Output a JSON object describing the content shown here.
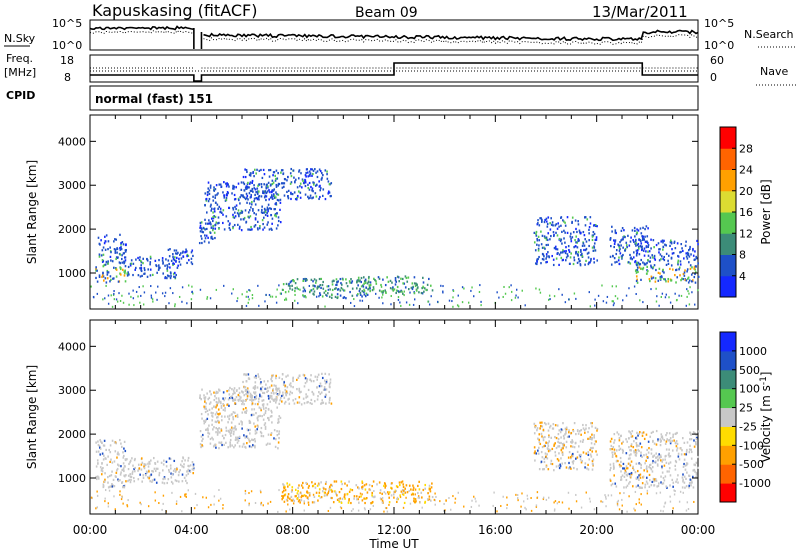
{
  "header": {
    "station": "Kapuskasing (fitACF)",
    "beam": "Beam 09",
    "date": "13/Mar/2011"
  },
  "status_panels": {
    "nsky_label": "N.Sky",
    "nsearch_label": "N.Search",
    "noise_ticks": [
      "10^5",
      "10^0"
    ],
    "freq_label_1": "Freq.",
    "freq_label_2": "[MHz]",
    "freq_ticks": [
      "18",
      "8"
    ],
    "nave_label": "Nave",
    "nave_ticks": [
      "60",
      "0"
    ],
    "cpid_label": "CPID",
    "cpid_value": "normal (fast) 151"
  },
  "chart_data": [
    {
      "type": "heatmap",
      "name_printed": "",
      "ylabel": "Slant Range [km]",
      "xlabel": "Time UT",
      "xlim_hours": [
        0,
        24
      ],
      "ylim_km": [
        180,
        4600
      ],
      "x_ticks": [
        "00:00",
        "04:00",
        "08:00",
        "12:00",
        "16:00",
        "20:00",
        "00:00"
      ],
      "y_ticks": [
        "1000",
        "2000",
        "3000",
        "4000"
      ],
      "colorbar": {
        "label": "Power [dB]",
        "ticks": [
          "4",
          "8",
          "12",
          "16",
          "20",
          "24",
          "28"
        ],
        "colors": [
          "#1428ff",
          "#1e50c8",
          "#3c8c78",
          "#55c850",
          "#dcdc32",
          "#ffa000",
          "#ff6400",
          "#ff0000"
        ]
      },
      "scatter_regions": [
        {
          "t0": 0.2,
          "t1": 1.4,
          "r0": 800,
          "r1": 1900
        },
        {
          "t0": 1.3,
          "t1": 3.5,
          "r0": 900,
          "r1": 1400
        },
        {
          "t0": 3.0,
          "t1": 4.1,
          "r0": 1200,
          "r1": 1600
        },
        {
          "t0": 4.3,
          "t1": 5.0,
          "r0": 1700,
          "r1": 2300
        },
        {
          "t0": 4.5,
          "t1": 7.5,
          "r0": 2000,
          "r1": 3100
        },
        {
          "t0": 6.0,
          "t1": 9.5,
          "r0": 2700,
          "r1": 3400
        },
        {
          "t0": 7.5,
          "t1": 11.0,
          "r0": 450,
          "r1": 900
        },
        {
          "t0": 10.5,
          "t1": 13.5,
          "r0": 550,
          "r1": 950
        },
        {
          "t0": 17.5,
          "t1": 20.0,
          "r0": 1200,
          "r1": 2300
        },
        {
          "t0": 20.5,
          "t1": 22.0,
          "r0": 1200,
          "r1": 2100
        },
        {
          "t0": 21.5,
          "t1": 24.0,
          "r0": 800,
          "r1": 1800
        }
      ]
    },
    {
      "type": "heatmap",
      "name_printed": "",
      "ylabel": "Slant Range [km]",
      "xlabel": "Time UT",
      "xlim_hours": [
        0,
        24
      ],
      "ylim_km": [
        180,
        4600
      ],
      "x_ticks": [
        "00:00",
        "04:00",
        "08:00",
        "12:00",
        "16:00",
        "20:00",
        "00:00"
      ],
      "y_ticks": [
        "1000",
        "2000",
        "3000",
        "4000"
      ],
      "colorbar": {
        "label": "Velocity [m s^-1]",
        "ticks": [
          "1000",
          "500",
          "100",
          "25",
          "-25",
          "-100",
          "-500",
          "-1000"
        ],
        "colors": [
          "#1428ff",
          "#1e50c8",
          "#3c8c78",
          "#55c850",
          "#c8c8c8",
          "#ffdc00",
          "#ffa000",
          "#ff6400",
          "#ff0000"
        ]
      },
      "scatter_regions": [
        {
          "t0": 0.2,
          "t1": 1.4,
          "r0": 800,
          "r1": 1900
        },
        {
          "t0": 1.3,
          "t1": 4.1,
          "r0": 900,
          "r1": 1500
        },
        {
          "t0": 4.3,
          "t1": 7.5,
          "r0": 1700,
          "r1": 3100
        },
        {
          "t0": 6.0,
          "t1": 9.5,
          "r0": 2700,
          "r1": 3400
        },
        {
          "t0": 7.5,
          "t1": 13.5,
          "r0": 450,
          "r1": 950
        },
        {
          "t0": 17.5,
          "t1": 20.0,
          "r0": 1200,
          "r1": 2300
        },
        {
          "t0": 20.5,
          "t1": 24.0,
          "r0": 800,
          "r1": 2100
        }
      ]
    }
  ]
}
